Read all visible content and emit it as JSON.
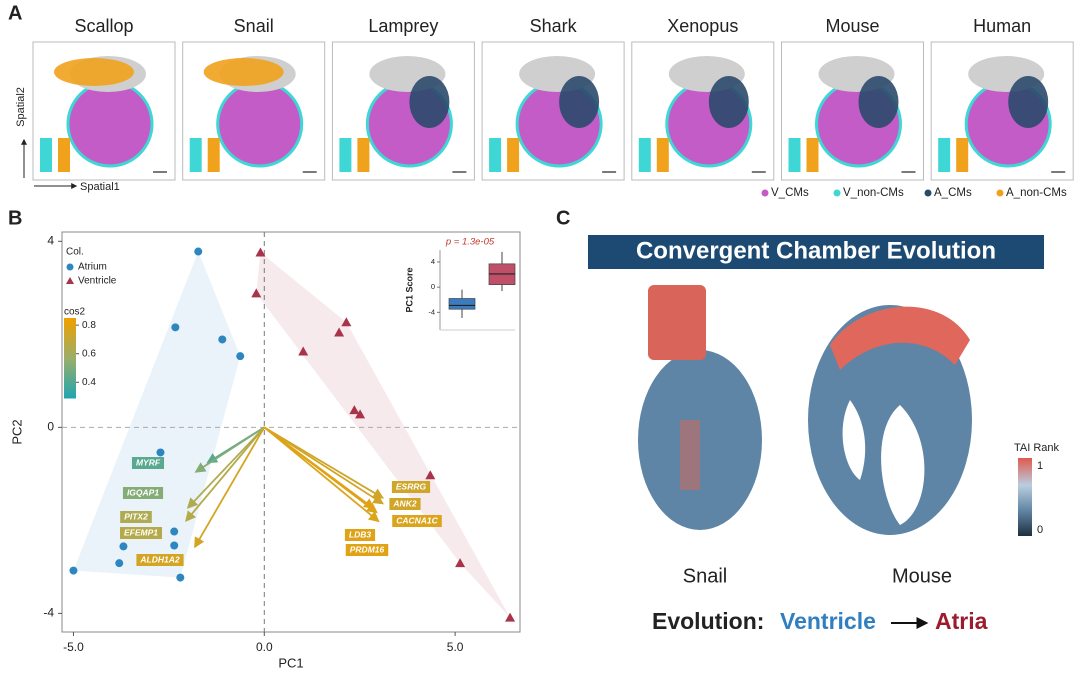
{
  "panel_labels": [
    "A",
    "B",
    "C"
  ],
  "panel_a": {
    "species": [
      "Scallop",
      "Snail",
      "Lamprey",
      "Shark",
      "Xenopus",
      "Mouse",
      "Human"
    ],
    "y_label": "Spatial2",
    "x_label": "Spatial1",
    "legend": [
      {
        "name": "V_CMs",
        "color": "#c45cc8"
      },
      {
        "name": "V_non-CMs",
        "color": "#3fd6d6"
      },
      {
        "name": "A_CMs",
        "color": "#2b4a6b"
      },
      {
        "name": "A_non-CMs",
        "color": "#f0a21c"
      }
    ]
  },
  "chart_data": [
    {
      "type": "scatter",
      "x_label": "PC1",
      "y_label": "PC2",
      "xlim": [
        -5.3,
        6.7
      ],
      "ylim": [
        -4.4,
        4.2
      ],
      "xticks": [
        {
          "value": -5,
          "label": "-5.0"
        },
        {
          "value": 0,
          "label": "0.0"
        },
        {
          "value": 5,
          "label": "5.0"
        }
      ],
      "yticks": [
        -4,
        0,
        4
      ],
      "legend_title": "Col.",
      "series": [
        {
          "name": "Atrium",
          "color": "#2e86c1",
          "marker": "circle",
          "x": [
            -1.73,
            -2.33,
            -1.1,
            -0.63,
            -2.72,
            -2.36,
            -2.36,
            -3.69,
            -3.8,
            -5.0,
            -2.2
          ],
          "values": [
            3.78,
            2.15,
            1.89,
            1.53,
            -0.54,
            -2.24,
            -2.54,
            -2.56,
            -2.92,
            -3.08,
            -3.23
          ]
        },
        {
          "name": "Ventricle",
          "color": "#a8334a",
          "marker": "triangle",
          "x": [
            -0.1,
            -0.21,
            1.02,
            1.96,
            2.15,
            2.36,
            2.51,
            4.35,
            5.13,
            6.44
          ],
          "values": [
            3.76,
            2.88,
            1.63,
            2.04,
            2.26,
            0.37,
            0.28,
            -1.03,
            -2.92,
            -4.09
          ]
        }
      ],
      "colorbar": {
        "title": "cos2",
        "clim": [
          0.29,
          0.85
        ],
        "ticks": [
          0.4,
          0.6,
          0.8
        ],
        "colormap": [
          "#1fa5b0",
          "#9aae6a",
          "#f0a000"
        ]
      },
      "loadings": [
        {
          "name": "MYRF",
          "x": -1.47,
          "y": -0.75,
          "cos2": 0.42
        },
        {
          "name": "IGQAP1",
          "x": -1.78,
          "y": -0.95,
          "cos2": 0.52
        },
        {
          "name": "PITX2",
          "x": -1.99,
          "y": -1.72,
          "cos2": 0.64
        },
        {
          "name": "EFEMP1",
          "x": -2.04,
          "y": -2.0,
          "cos2": 0.66
        },
        {
          "name": "ALDH1A2",
          "x": -1.81,
          "y": -2.56,
          "cos2": 0.76
        },
        {
          "name": "ESRRG",
          "x": 3.09,
          "y": -1.51,
          "cos2": 0.74
        },
        {
          "name": "ANK2",
          "x": 3.09,
          "y": -1.63,
          "cos2": 0.75
        },
        {
          "name": "CACNA1C",
          "x": 2.98,
          "y": -2.01,
          "cos2": 0.78
        },
        {
          "name": "LDB3",
          "x": 2.93,
          "y": -1.82,
          "cos2": 0.79
        },
        {
          "name": "PRDM16",
          "x": 2.85,
          "y": -1.73,
          "cos2": 0.8
        }
      ]
    },
    {
      "type": "box",
      "y_label": "PC1 Score",
      "annotation": "p = 1.3e-05",
      "ylim": [
        -6.8,
        5.9
      ],
      "yticks": [
        -4,
        0,
        4
      ],
      "boxes": [
        {
          "color": "#3b7cc0",
          "whisker_low": -4.9,
          "q1": -3.5,
          "median": -2.9,
          "q3": -1.8,
          "whisker_high": -0.4
        },
        {
          "color": "#c0506a",
          "whisker_low": -0.6,
          "q1": 0.4,
          "median": 2.1,
          "q3": 3.7,
          "whisker_high": 5.6
        }
      ]
    }
  ],
  "panel_c": {
    "title": "Convergent Chamber Evolution",
    "labels": [
      "Snail",
      "Mouse"
    ],
    "colorbar_title": "TAI Rank",
    "colorbar_ticks": [
      "1",
      "0"
    ],
    "evolution": {
      "prefix": "Evolution:",
      "from": "Ventricle",
      "to": "Atria"
    }
  }
}
